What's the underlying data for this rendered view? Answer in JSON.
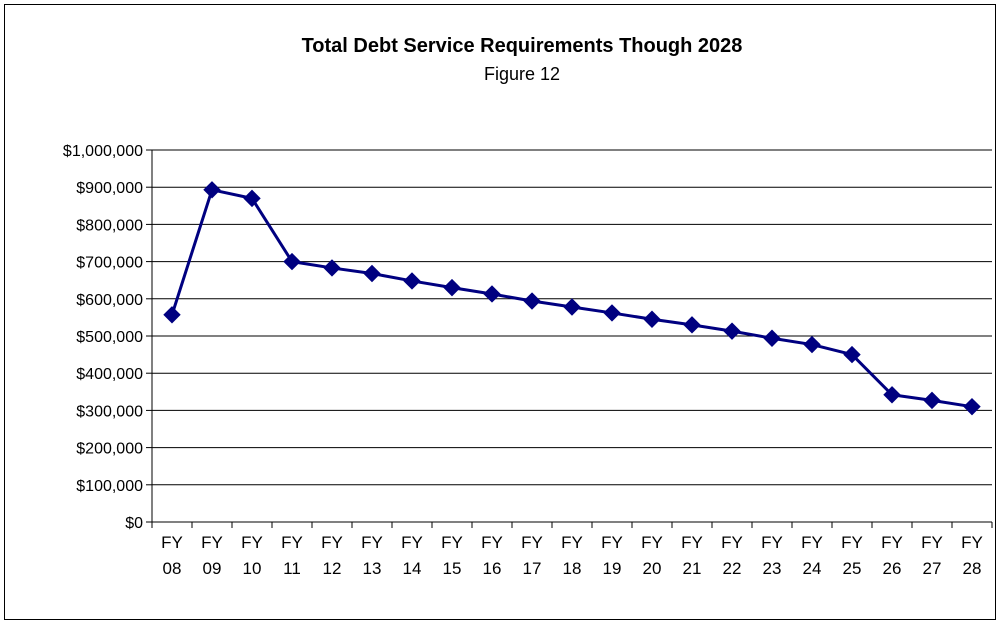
{
  "chart_data": {
    "type": "line",
    "title": "Total Debt Service Requirements Though 2028",
    "subtitle": "Figure 12",
    "xlabel": "",
    "ylabel": "",
    "ylim": [
      0,
      1000000
    ],
    "yticks": [
      0,
      100000,
      200000,
      300000,
      400000,
      500000,
      600000,
      700000,
      800000,
      900000,
      1000000
    ],
    "ytick_labels": [
      "$0",
      "$100,000",
      "$200,000",
      "$300,000",
      "$400,000",
      "$500,000",
      "$600,000",
      "$700,000",
      "$800,000",
      "$900,000",
      "$1,000,000"
    ],
    "categories": [
      [
        "FY",
        "08"
      ],
      [
        "FY",
        "09"
      ],
      [
        "FY",
        "10"
      ],
      [
        "FY",
        "11"
      ],
      [
        "FY",
        "12"
      ],
      [
        "FY",
        "13"
      ],
      [
        "FY",
        "14"
      ],
      [
        "FY",
        "15"
      ],
      [
        "FY",
        "16"
      ],
      [
        "FY",
        "17"
      ],
      [
        "FY",
        "18"
      ],
      [
        "FY",
        "19"
      ],
      [
        "FY",
        "20"
      ],
      [
        "FY",
        "21"
      ],
      [
        "FY",
        "22"
      ],
      [
        "FY",
        "23"
      ],
      [
        "FY",
        "24"
      ],
      [
        "FY",
        "25"
      ],
      [
        "FY",
        "26"
      ],
      [
        "FY",
        "27"
      ],
      [
        "FY",
        "28"
      ]
    ],
    "series": [
      {
        "values": [
          557000,
          893000,
          870000,
          700000,
          683000,
          668000,
          648000,
          630000,
          613000,
          594000,
          578000,
          562000,
          545000,
          530000,
          513000,
          494000,
          477000,
          450000,
          342000,
          327000,
          310000
        ],
        "color": "#000080",
        "marker": "diamond"
      }
    ],
    "grid": true,
    "legend": "none"
  }
}
